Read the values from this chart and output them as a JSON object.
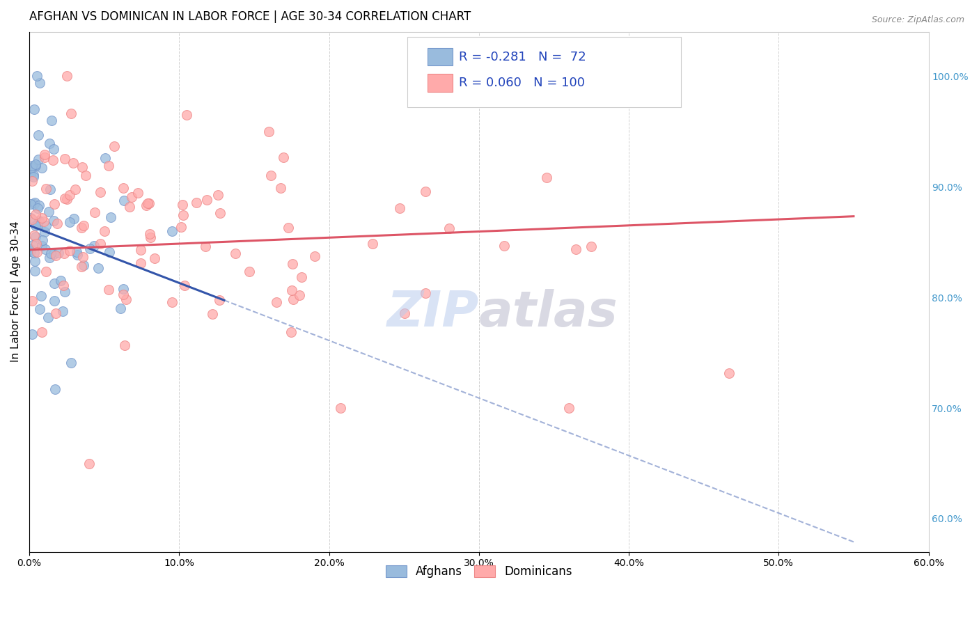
{
  "title": "AFGHAN VS DOMINICAN IN LABOR FORCE | AGE 30-34 CORRELATION CHART",
  "source": "Source: ZipAtlas.com",
  "ylabel": "In Labor Force | Age 30-34",
  "x_tick_labels": [
    "0.0%",
    "10.0%",
    "20.0%",
    "30.0%",
    "40.0%",
    "50.0%",
    "60.0%"
  ],
  "x_tick_values": [
    0.0,
    10.0,
    20.0,
    30.0,
    40.0,
    50.0,
    60.0
  ],
  "y_tick_labels_right": [
    "60.0%",
    "70.0%",
    "80.0%",
    "90.0%",
    "100.0%"
  ],
  "y_tick_values": [
    60.0,
    70.0,
    80.0,
    90.0,
    100.0
  ],
  "xlim": [
    0.0,
    60.0
  ],
  "ylim": [
    57.0,
    104.0
  ],
  "afghan_R": -0.281,
  "afghan_N": 72,
  "dominican_R": 0.06,
  "dominican_N": 100,
  "afghan_color": "#99BBDD",
  "afghan_edge_color": "#7799CC",
  "dominican_color": "#FFAAAA",
  "dominican_edge_color": "#EE8888",
  "afghan_line_color": "#3355AA",
  "dominican_line_color": "#DD5566",
  "background_color": "#FFFFFF",
  "grid_color": "#CCCCCC",
  "watermark_color": "#BBCCEE",
  "title_fontsize": 12,
  "axis_label_fontsize": 11,
  "tick_fontsize": 10,
  "stats_fontsize": 13,
  "legend_fontsize": 12,
  "stats_color": "#2244BB"
}
